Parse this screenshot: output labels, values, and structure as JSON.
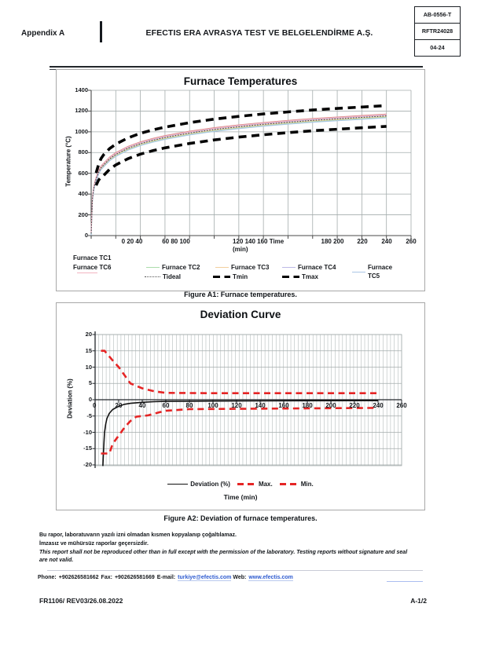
{
  "header": {
    "appendix": "Appendix A",
    "company": "EFECTIS ERA AVRASYA TEST VE BELGELENDİRME A.Ş.",
    "doc_cells": [
      "AB-0556-T",
      "RFTR24028",
      "04-24"
    ]
  },
  "figures": {
    "a1_caption": "Figure A1: Furnace temperatures.",
    "a2_caption": "Figure A2: Deviation of furnace temperatures."
  },
  "chart_data": [
    {
      "type": "line",
      "title": "Furnace Temperatures",
      "xlabel": "Time (min)",
      "ylabel": "Temperature (°C)",
      "xlim": [
        0,
        260
      ],
      "ylim": [
        0,
        1400
      ],
      "x_major_grid": 20,
      "y_major_grid": 200,
      "grid": true,
      "yticks": [
        0,
        200,
        400,
        600,
        800,
        1000,
        1200,
        1400
      ],
      "xtick_clusters": [
        {
          "line1": "0 20 40"
        },
        {
          "line1": "60 80 100"
        },
        {
          "line1": "120 140 160 Time",
          "line2": "(min)"
        },
        {
          "line1": "180 200"
        },
        {
          "line1": "220"
        },
        {
          "line1": "240"
        },
        {
          "line1": "260"
        }
      ],
      "t": [
        0,
        1,
        2,
        3,
        4,
        5,
        6,
        8,
        10,
        15,
        20,
        30,
        40,
        50,
        60,
        80,
        100,
        120,
        140,
        160,
        180,
        200,
        220,
        240
      ],
      "tideal_values": [
        20,
        349,
        444,
        502,
        544,
        576,
        610,
        652,
        678,
        739,
        781,
        842,
        885,
        918,
        945,
        988,
        1022,
        1049,
        1072,
        1092,
        1110,
        1125,
        1139,
        1153
      ],
      "series": [
        {
          "key": "tc1",
          "name": "Furnace TC1",
          "color": "#d98d8d",
          "offset_from_tideal": 18
        },
        {
          "key": "tc2",
          "name": "Furnace TC2",
          "color": "#abdcab",
          "offset_from_tideal": -12
        },
        {
          "key": "tc3",
          "name": "Furnace TC3",
          "color": "#f2cf9e",
          "offset_from_tideal": -4
        },
        {
          "key": "tc4",
          "name": "Furnace TC4",
          "color": "#bdb9e6",
          "offset_from_tideal": 7
        },
        {
          "key": "tc5",
          "name": "Furnace TC5",
          "color": "#aac6e6",
          "offset_from_tideal": -18
        },
        {
          "key": "tc6",
          "name": "Furnace TC6",
          "color": "#f2b4c2",
          "offset_from_tideal": 12
        }
      ],
      "tideal": {
        "name": "Tideal",
        "color": "#3a3a3a",
        "style": "dotted"
      },
      "bounds_t": [
        4,
        6,
        8,
        10,
        15,
        20,
        30,
        40,
        50,
        60,
        80,
        100,
        120,
        140,
        160,
        180,
        200,
        220,
        240
      ],
      "tmax": {
        "name": "Tmax",
        "color": "#050505",
        "style": "bold-dashed",
        "values": [
          604,
          685,
          742,
          778,
          839,
          881,
          942,
          985,
          1018,
          1045,
          1088,
          1122,
          1149,
          1172,
          1192,
          1210,
          1225,
          1239,
          1253
        ]
      },
      "tmin": {
        "name": "Tmin",
        "color": "#050505",
        "style": "bold-dashed",
        "values": [
          484,
          535,
          562,
          578,
          639,
          681,
          742,
          785,
          818,
          845,
          888,
          922,
          949,
          972,
          992,
          1010,
          1025,
          1039,
          1053
        ]
      },
      "legend_labels": {
        "tc1": "Furnace TC1",
        "tc2": "Furnace TC2",
        "tc3": "Furnace TC3",
        "tc4": "Furnace TC4",
        "tc5": "Furnace TC5",
        "tc6": "Furnace TC6",
        "tideal": "Tideal",
        "tmin": "Tmin",
        "tmax": "Tmax"
      }
    },
    {
      "type": "line",
      "title": "Deviation Curve",
      "xlabel": "Time (min)",
      "ylabel": "Deviation (%)",
      "xlim": [
        0,
        260
      ],
      "ylim": [
        -20,
        20
      ],
      "y_major_grid": 5,
      "grid": true,
      "yticks": [
        20,
        15,
        10,
        5,
        0,
        -5,
        -10,
        -15,
        -20
      ],
      "xticks": [
        0,
        20,
        40,
        60,
        80,
        100,
        120,
        140,
        160,
        180,
        200,
        220,
        240,
        260
      ],
      "series": [
        {
          "name": "Deviation (%)",
          "color": "#111111",
          "style": "solid",
          "t": [
            6.6,
            7,
            7.5,
            8,
            9,
            10,
            12,
            15,
            20,
            25,
            30,
            40,
            50,
            60,
            80,
            100,
            140,
            180,
            220,
            240
          ],
          "values": [
            -21,
            -17,
            -13,
            -10,
            -7.5,
            -5.8,
            -4.2,
            -3,
            -2,
            -1.4,
            -1.1,
            -0.8,
            -0.6,
            -0.5,
            -0.45,
            -0.4,
            -0.35,
            -0.32,
            -0.3,
            -0.3
          ]
        },
        {
          "name": "Max.",
          "color": "#e52525",
          "style": "dashed",
          "t": [
            5,
            8,
            15,
            20,
            25,
            30,
            40,
            50,
            60,
            100,
            240
          ],
          "values": [
            15,
            15,
            12,
            10,
            7.5,
            5,
            3.5,
            2.6,
            2.1,
            2,
            2
          ]
        },
        {
          "name": "Min.",
          "color": "#e52525",
          "style": "dashed",
          "t": [
            5,
            12,
            15,
            20,
            25,
            30,
            35,
            45,
            55,
            60,
            80,
            240
          ],
          "values": [
            -16.5,
            -16.5,
            -13.5,
            -11,
            -8.5,
            -6.5,
            -5.2,
            -4.8,
            -3.8,
            -3.4,
            -2.9,
            -2.5
          ]
        }
      ]
    }
  ],
  "footer": {
    "note_tr_1": "Bu rapor, laboratuvarın yazılı izni olmadan kısmen kopyalanıp çoğaltılamaz.",
    "note_tr_2": "İmzasız ve mühürsüz raporlar geçersizdir.",
    "note_en_1": "This report shall not be reproduced other than in full except with the permission of the laboratory. Testing reports without signature and seal",
    "note_en_2": "are not valid.",
    "phone_label": "Phone:",
    "phone": "+902626581662",
    "fax_label": "Fax:",
    "fax": "+902626581669",
    "email_label": "E-mail:",
    "email": "turkiye@efectis.com",
    "web_label": "Web:",
    "web": "www.efectis.com",
    "doc_code": "FR1106/ REV03/26.08.2022",
    "page_number": "A-1/2"
  }
}
